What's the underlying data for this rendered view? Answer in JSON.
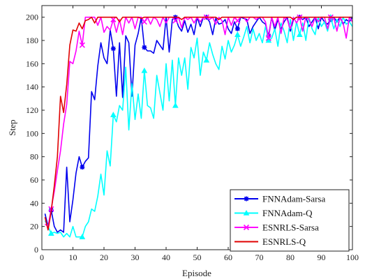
{
  "chart_data": {
    "type": "line",
    "title": "",
    "xlabel": "Episode",
    "ylabel": "Step",
    "xlim": [
      0,
      100
    ],
    "ylim": [
      0,
      210
    ],
    "xticks": [
      0,
      10,
      20,
      30,
      40,
      50,
      60,
      70,
      80,
      90,
      100
    ],
    "yticks": [
      0,
      20,
      40,
      60,
      80,
      100,
      120,
      140,
      160,
      180,
      200
    ],
    "grid": false,
    "legend_position": "bottom-right",
    "series": [
      {
        "name": "FNNAdam-Sarsa",
        "color": "#0000ee",
        "marker": "asterisk",
        "x": [
          1,
          2,
          3,
          4,
          5,
          6,
          7,
          8,
          9,
          10,
          11,
          12,
          13,
          14,
          15,
          16,
          17,
          18,
          19,
          20,
          21,
          22,
          23,
          24,
          25,
          26,
          27,
          28,
          29,
          30,
          31,
          32,
          33,
          34,
          35,
          36,
          37,
          38,
          39,
          40,
          41,
          42,
          43,
          44,
          45,
          46,
          47,
          48,
          49,
          50,
          51,
          52,
          53,
          54,
          55,
          56,
          57,
          58,
          59,
          60,
          61,
          62,
          63,
          64,
          65,
          66,
          67,
          68,
          69,
          70,
          71,
          72,
          73,
          74,
          75,
          76,
          77,
          78,
          79,
          80,
          81,
          82,
          83,
          84,
          85,
          86,
          87,
          88,
          89,
          90,
          91,
          92,
          93,
          94,
          95,
          96,
          97,
          98,
          99,
          100
        ],
        "values": [
          31,
          20,
          34,
          20,
          15,
          17,
          15,
          71,
          24,
          43,
          66,
          80,
          71,
          76,
          79,
          136,
          129,
          158,
          178,
          165,
          160,
          189,
          173,
          132,
          178,
          131,
          184,
          178,
          132,
          176,
          186,
          200,
          174,
          171,
          171,
          169,
          180,
          176,
          172,
          200,
          170,
          198,
          200,
          192,
          188,
          197,
          187,
          194,
          185,
          200,
          192,
          200,
          200,
          196,
          185,
          199,
          194,
          195,
          198,
          190,
          186,
          196,
          190,
          200,
          199,
          198,
          186,
          192,
          196,
          200,
          196,
          194,
          184,
          200,
          189,
          198,
          190,
          196,
          200,
          188,
          198,
          200,
          200,
          198,
          200,
          192,
          196,
          200,
          190,
          200,
          196,
          194,
          198,
          200,
          196,
          200,
          194,
          198,
          196,
          200
        ]
      },
      {
        "name": "FNNAdam-Q",
        "color": "#00ffff",
        "marker": "triangle",
        "x": [
          1,
          2,
          3,
          4,
          5,
          6,
          7,
          8,
          9,
          10,
          11,
          12,
          13,
          14,
          15,
          16,
          17,
          18,
          19,
          20,
          21,
          22,
          23,
          24,
          25,
          26,
          27,
          28,
          29,
          30,
          31,
          32,
          33,
          34,
          35,
          36,
          37,
          38,
          39,
          40,
          41,
          42,
          43,
          44,
          45,
          46,
          47,
          48,
          49,
          50,
          51,
          52,
          53,
          54,
          55,
          56,
          57,
          58,
          59,
          60,
          61,
          62,
          63,
          64,
          65,
          66,
          67,
          68,
          69,
          70,
          71,
          72,
          73,
          74,
          75,
          76,
          77,
          78,
          79,
          80,
          81,
          82,
          83,
          84,
          85,
          86,
          87,
          88,
          89,
          90,
          91,
          92,
          93,
          94,
          95,
          96,
          97,
          98,
          99,
          100
        ],
        "values": [
          25,
          20,
          14,
          15,
          14,
          15,
          11,
          14,
          11,
          20,
          11,
          11,
          11,
          20,
          24,
          35,
          33,
          46,
          65,
          47,
          85,
          72,
          116,
          110,
          124,
          120,
          157,
          103,
          143,
          112,
          134,
          113,
          154,
          124,
          122,
          113,
          150,
          135,
          120,
          160,
          128,
          163,
          124,
          165,
          150,
          165,
          138,
          174,
          165,
          182,
          150,
          170,
          163,
          178,
          168,
          160,
          155,
          175,
          164,
          180,
          170,
          176,
          185,
          175,
          183,
          192,
          178,
          190,
          180,
          186,
          178,
          192,
          180,
          182,
          190,
          175,
          195,
          188,
          178,
          198,
          180,
          196,
          185,
          195,
          180,
          200,
          190,
          185,
          200,
          192,
          196,
          188,
          200,
          190,
          198,
          192,
          200,
          194,
          196,
          192
        ]
      },
      {
        "name": "ESNRLS-Sarsa",
        "color": "#ff00ff",
        "marker": "x",
        "x": [
          1,
          2,
          3,
          4,
          5,
          6,
          7,
          8,
          9,
          10,
          11,
          12,
          13,
          14,
          15,
          16,
          17,
          18,
          19,
          20,
          21,
          22,
          23,
          24,
          25,
          26,
          27,
          28,
          29,
          30,
          31,
          32,
          33,
          34,
          35,
          36,
          37,
          38,
          39,
          40,
          41,
          42,
          43,
          44,
          45,
          46,
          47,
          48,
          49,
          50,
          51,
          52,
          53,
          54,
          55,
          56,
          57,
          58,
          59,
          60,
          61,
          62,
          63,
          64,
          65,
          66,
          67,
          68,
          69,
          70,
          71,
          72,
          73,
          74,
          75,
          76,
          77,
          78,
          79,
          80,
          81,
          82,
          83,
          84,
          85,
          86,
          87,
          88,
          89,
          90,
          91,
          92,
          93,
          94,
          95,
          96,
          97,
          98,
          99,
          100
        ],
        "values": [
          22,
          20,
          35,
          50,
          68,
          85,
          108,
          125,
          162,
          160,
          171,
          188,
          176,
          200,
          200,
          200,
          200,
          193,
          200,
          187,
          192,
          189,
          198,
          187,
          198,
          185,
          200,
          195,
          200,
          190,
          200,
          200,
          196,
          200,
          194,
          200,
          198,
          192,
          200,
          195,
          200,
          200,
          197,
          200,
          191,
          200,
          198,
          200,
          195,
          200,
          196,
          200,
          200,
          198,
          200,
          194,
          200,
          197,
          185,
          200,
          193,
          200,
          197,
          200,
          200,
          196,
          200,
          200,
          198,
          200,
          200,
          196,
          182,
          200,
          192,
          200,
          186,
          200,
          198,
          190,
          200,
          195,
          200,
          188,
          200,
          198,
          192,
          200,
          196,
          200,
          200,
          190,
          200,
          200,
          188,
          200,
          195,
          182,
          200,
          196
        ]
      },
      {
        "name": "ESNRLS-Q",
        "color": "#e00000",
        "marker": "none",
        "x": [
          1,
          2,
          3,
          4,
          5,
          6,
          7,
          8,
          9,
          10,
          11,
          12,
          13,
          14,
          15,
          16,
          17,
          18,
          19,
          20,
          21,
          22,
          23,
          24,
          25,
          26,
          27,
          28,
          29,
          30,
          31,
          32,
          33,
          34,
          35,
          36,
          37,
          38,
          39,
          40,
          41,
          42,
          43,
          44,
          45,
          46,
          47,
          48,
          49,
          50,
          51,
          52,
          53,
          54,
          55,
          56,
          57,
          58,
          59,
          60,
          61,
          62,
          63,
          64,
          65,
          66,
          67,
          68,
          69,
          70,
          71,
          72,
          73,
          74,
          75,
          76,
          77,
          78,
          79,
          80,
          81,
          82,
          83,
          84,
          85,
          86,
          87,
          88,
          89,
          90,
          91,
          92,
          93,
          94,
          95,
          96,
          97,
          98,
          99,
          100
        ],
        "values": [
          28,
          17,
          33,
          55,
          80,
          132,
          118,
          142,
          176,
          189,
          188,
          195,
          190,
          197,
          198,
          200,
          195,
          200,
          200,
          200,
          200,
          200,
          200,
          200,
          196,
          200,
          200,
          200,
          200,
          200,
          200,
          199,
          200,
          200,
          200,
          200,
          200,
          200,
          200,
          200,
          200,
          200,
          200,
          200,
          198,
          200,
          200,
          200,
          200,
          200,
          200,
          200,
          200,
          200,
          200,
          200,
          198,
          200,
          200,
          200,
          200,
          200,
          200,
          200,
          200,
          200,
          200,
          200,
          200,
          200,
          200,
          200,
          200,
          200,
          200,
          200,
          200,
          200,
          200,
          200,
          198,
          200,
          200,
          200,
          200,
          200,
          200,
          200,
          200,
          200,
          200,
          200,
          200,
          200,
          200,
          200,
          200,
          200,
          200,
          200
        ]
      }
    ]
  }
}
